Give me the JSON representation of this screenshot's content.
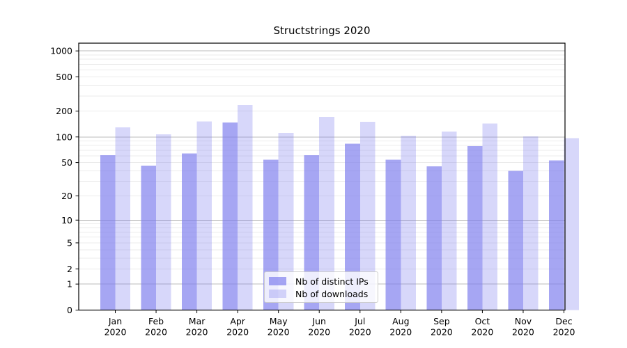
{
  "figure": {
    "title": "Structstrings 2020"
  },
  "chart_data": {
    "type": "bar",
    "title": "Structstrings 2020",
    "categories": [
      "Jan 2020",
      "Feb 2020",
      "Mar 2020",
      "Apr 2020",
      "May 2020",
      "Jun 2020",
      "Jul 2020",
      "Aug 2020",
      "Sep 2020",
      "Oct 2020",
      "Nov 2020",
      "Dec 2020"
    ],
    "series": [
      {
        "name": "Nb of distinct IPs",
        "color": "rgba(122,122,237,0.67)",
        "values": [
          61,
          46,
          64,
          147,
          54,
          61,
          83,
          54,
          45,
          78,
          40,
          53
        ]
      },
      {
        "name": "Nb of downloads",
        "color": "rgba(122,122,237,0.30)",
        "values": [
          129,
          107,
          152,
          235,
          111,
          172,
          150,
          103,
          116,
          143,
          101,
          97
        ]
      }
    ],
    "xlabel": "",
    "ylabel": "",
    "yscale": "symlog",
    "yticks": [
      0,
      1,
      2,
      5,
      10,
      20,
      50,
      100,
      200,
      500,
      1000
    ],
    "ylim": [
      0,
      1230
    ],
    "grid": "on",
    "major_gridlines": [
      1,
      10,
      100,
      1000
    ],
    "minor_gridline_mantissas": [
      2,
      3,
      4,
      5,
      6,
      7,
      8,
      9
    ],
    "legend_position": "lower center"
  },
  "colors": {
    "bar_distinct_ips": "rgba(122,122,237,0.67)",
    "bar_downloads": "rgba(122,122,237,0.30)",
    "major_grid": "#bbbbbb",
    "minor_grid": "#ebebeb",
    "spine": "#000000",
    "tick_label": "#000000",
    "legend_border": "#cccccc",
    "legend_bg": "rgba(255,255,255,0.8)"
  }
}
